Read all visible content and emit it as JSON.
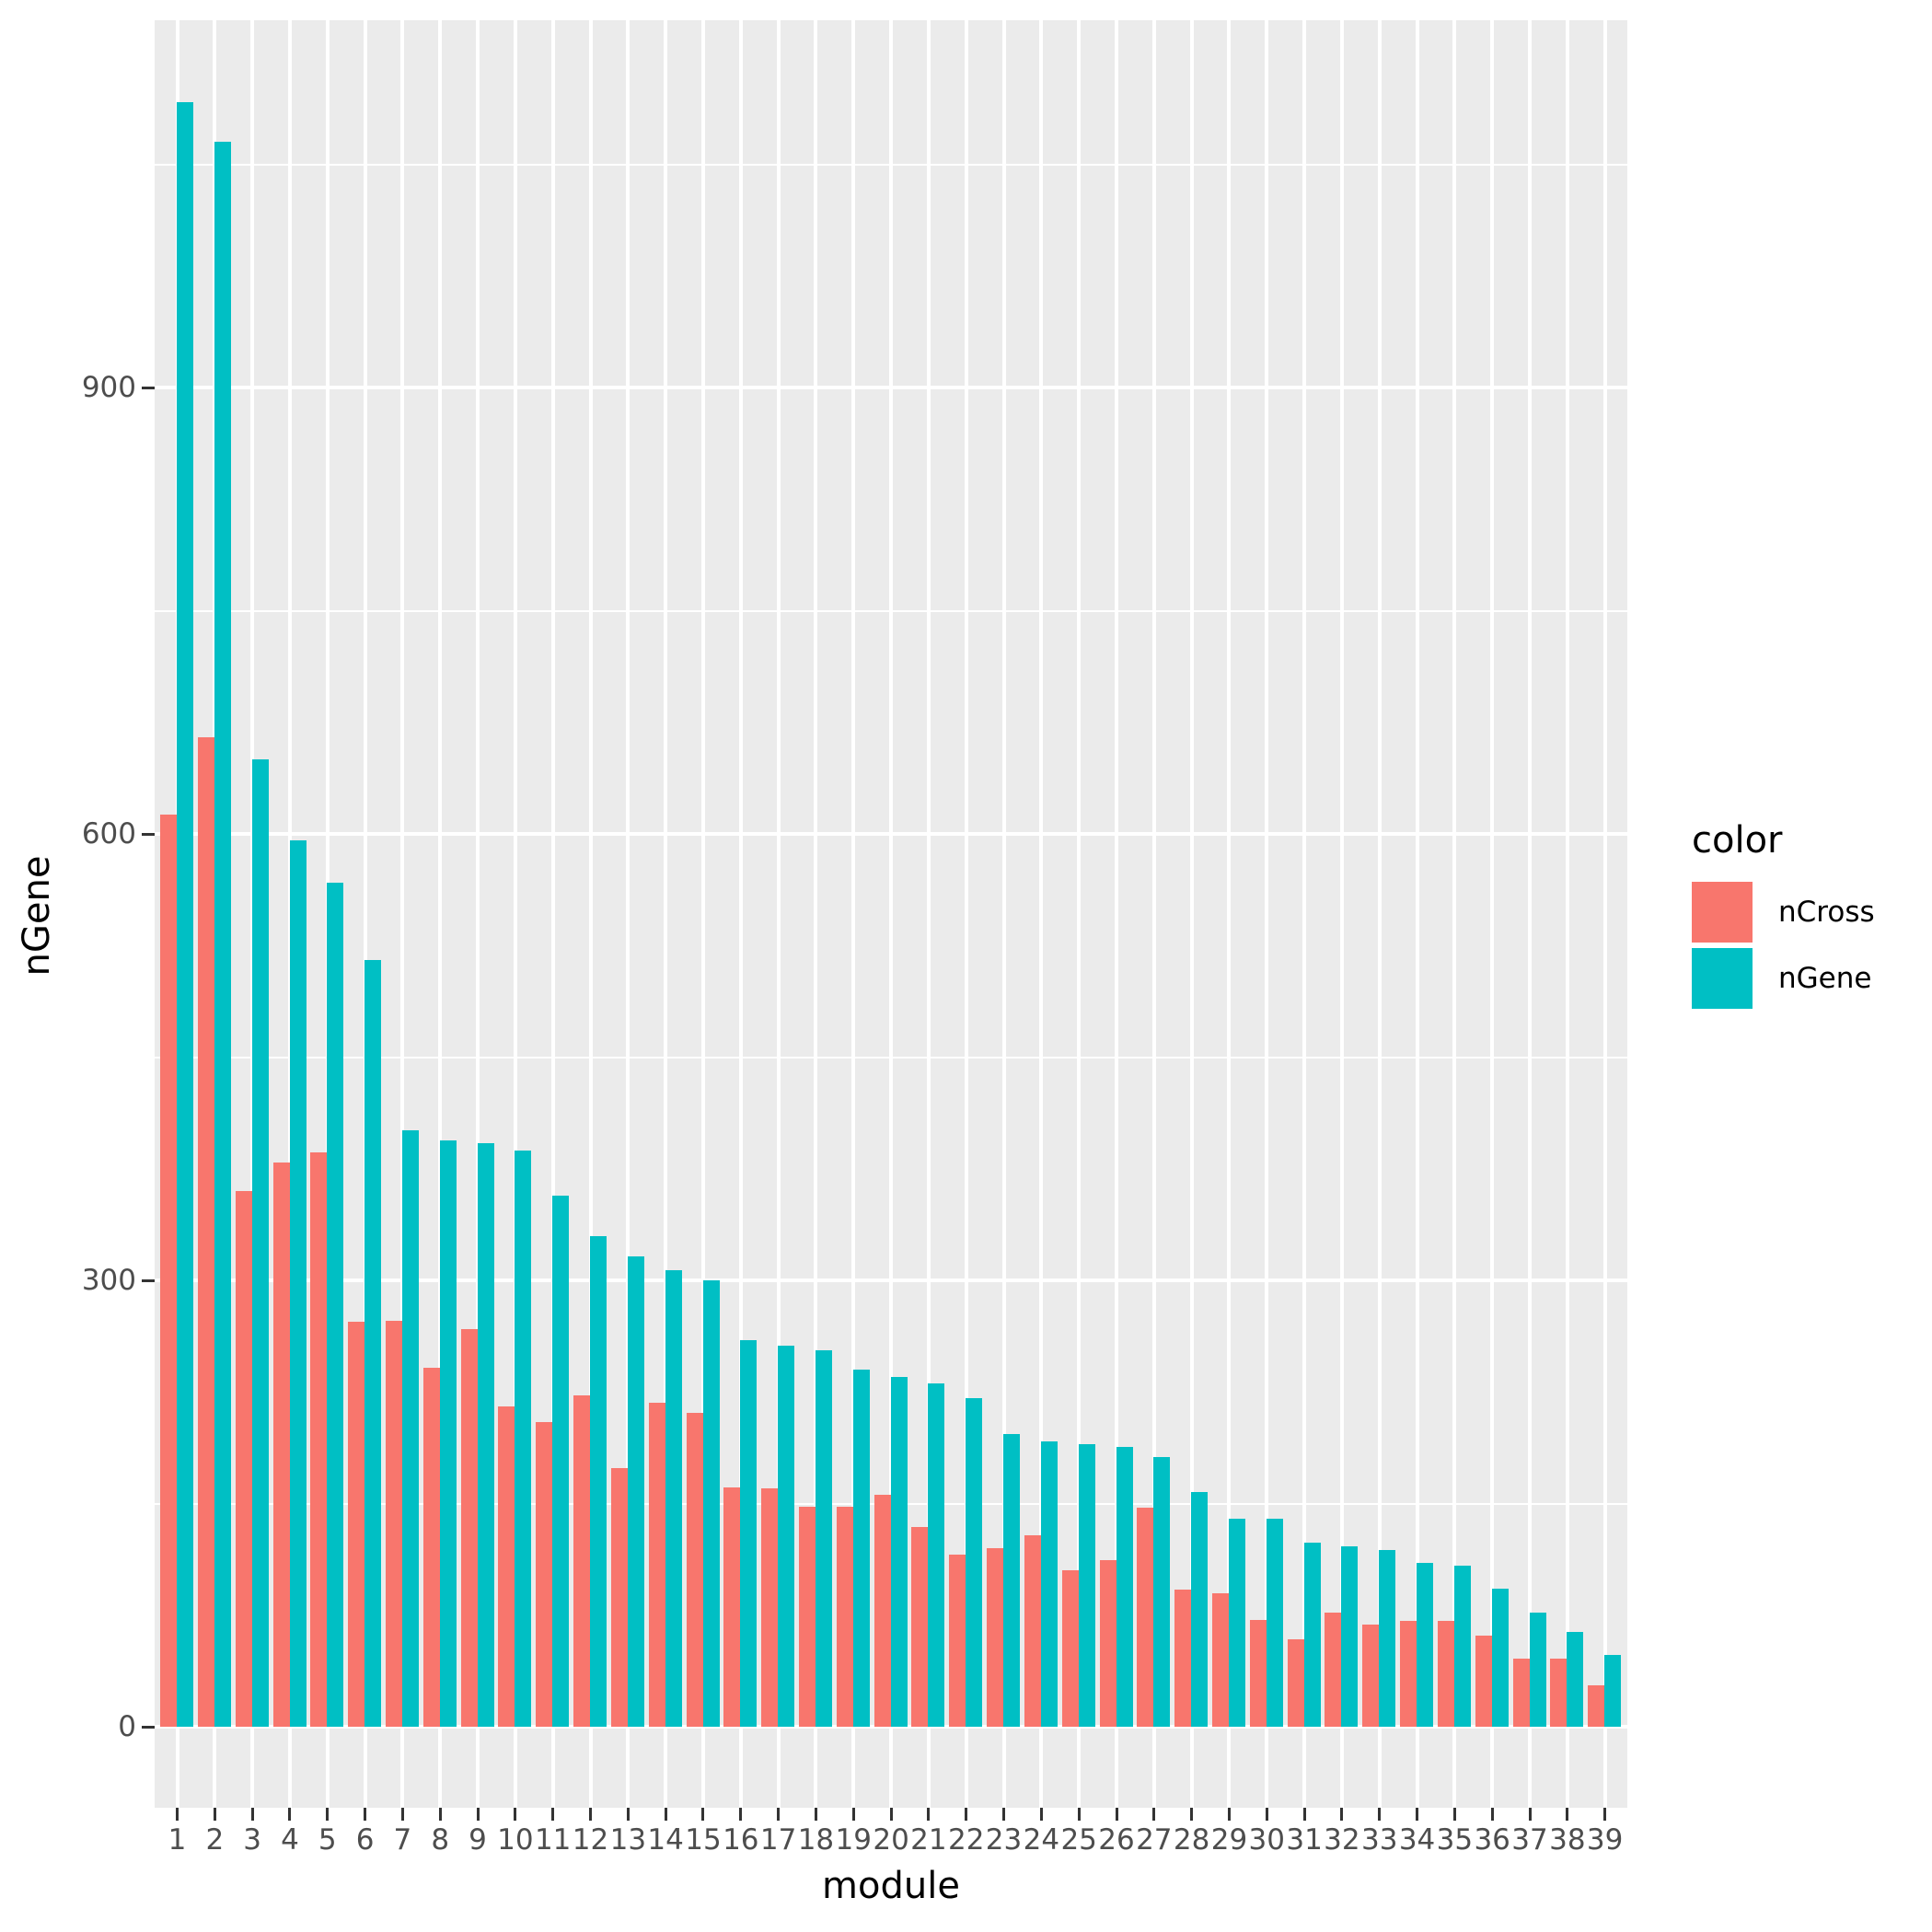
{
  "figure": {
    "background": "#ffffff",
    "panel_background": "#ebebeb",
    "gridline_color": "#ffffff",
    "tick_mark_color": "#333333",
    "tick_label_color": "#4d4d4d",
    "title_color": "#000000"
  },
  "axes": {
    "x_title": "module",
    "y_title": "nGene",
    "y_tick_labels": [
      "0",
      "300",
      "600",
      "900"
    ],
    "y_tick_values": [
      0,
      300,
      600,
      900
    ],
    "y_minor_values": [
      150,
      450,
      750,
      1050
    ],
    "x_tick_labels": [
      "1",
      "2",
      "3",
      "4",
      "5",
      "6",
      "7",
      "8",
      "9",
      "10",
      "11",
      "12",
      "13",
      "14",
      "15",
      "16",
      "17",
      "18",
      "19",
      "20",
      "21",
      "22",
      "23",
      "24",
      "25",
      "26",
      "27",
      "28",
      "29",
      "30",
      "31",
      "32",
      "33",
      "34",
      "35",
      "36",
      "37",
      "38",
      "39"
    ]
  },
  "legend": {
    "title": "color",
    "items": [
      {
        "label": "nCross",
        "color": "#F8766D"
      },
      {
        "label": "nGene",
        "color": "#00BFC4"
      }
    ]
  },
  "chart_data": {
    "type": "bar",
    "subtype": "dodged",
    "title": "",
    "xlabel": "module",
    "ylabel": "nGene",
    "ylim": [
      0,
      1150
    ],
    "yticks": [
      0,
      300,
      600,
      900
    ],
    "grid": true,
    "legend_title": "color",
    "legend_position": "right",
    "categories": [
      1,
      2,
      3,
      4,
      5,
      6,
      7,
      8,
      9,
      10,
      11,
      12,
      13,
      14,
      15,
      16,
      17,
      18,
      19,
      20,
      21,
      22,
      23,
      24,
      25,
      26,
      27,
      28,
      29,
      30,
      31,
      32,
      33,
      34,
      35,
      36,
      37,
      38,
      39
    ],
    "series": [
      {
        "name": "nCross",
        "color": "#F8766D",
        "values": [
          613,
          665,
          360,
          379,
          386,
          272,
          273,
          241,
          267,
          215,
          205,
          223,
          174,
          218,
          211,
          161,
          160,
          148,
          148,
          156,
          134,
          116,
          120,
          129,
          105,
          112,
          147,
          92,
          90,
          72,
          59,
          77,
          69,
          71,
          71,
          61,
          46,
          46,
          28
        ]
      },
      {
        "name": "nGene",
        "color": "#00BFC4",
        "values": [
          1092,
          1065,
          650,
          596,
          567,
          515,
          401,
          394,
          392,
          387,
          357,
          330,
          316,
          307,
          300,
          260,
          256,
          253,
          240,
          235,
          231,
          221,
          197,
          192,
          190,
          188,
          181,
          158,
          140,
          140,
          124,
          121,
          119,
          110,
          108,
          93,
          77,
          64,
          48
        ]
      }
    ]
  }
}
